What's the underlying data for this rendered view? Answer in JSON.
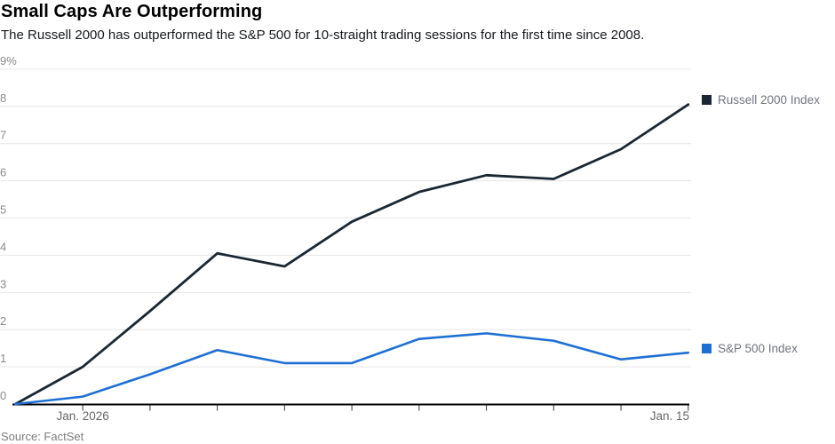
{
  "colors": {
    "grid": "#e6e6e6",
    "axis_line": "#000000",
    "tick": "#333333",
    "y_label": "#8a8a8a",
    "x_label": "#666666",
    "legend_text": "#70757d",
    "title": "#000000",
    "subtitle": "#15181d",
    "source": "#7c7c7c",
    "russell": "#1a2733",
    "sp500": "#1e6fd4"
  },
  "chart_data": {
    "type": "line",
    "title": "Small Caps Are Outperforming",
    "subtitle": "The Russell 2000 has outperformed the S&P 500 for 10-straight trading sessions for the first time since 2008.",
    "source": "Source: FactSet",
    "x": [
      0,
      1,
      2,
      3,
      4,
      5,
      6,
      7,
      8,
      9,
      10
    ],
    "x_axis": {
      "tick_indices": [
        1,
        2,
        3,
        4,
        5,
        6,
        7,
        8,
        9,
        10
      ],
      "labels": [
        {
          "index": 1,
          "label": "Jan. 2026",
          "align": "center"
        },
        {
          "index": 10,
          "label": "Jan. 15",
          "align": "end"
        }
      ]
    },
    "y_axis": {
      "min": 0,
      "max": 9,
      "unit": "%",
      "ticks": [
        {
          "value": 0,
          "label": "0"
        },
        {
          "value": 1,
          "label": "1"
        },
        {
          "value": 2,
          "label": "2"
        },
        {
          "value": 3,
          "label": "3"
        },
        {
          "value": 4,
          "label": "4"
        },
        {
          "value": 5,
          "label": "5"
        },
        {
          "value": 6,
          "label": "6"
        },
        {
          "value": 7,
          "label": "7"
        },
        {
          "value": 8,
          "label": "8"
        },
        {
          "value": 9,
          "label": "9%"
        }
      ]
    },
    "grid": true,
    "legend_position": "right-at-line-ends",
    "series": [
      {
        "name": "Russell 2000 Index",
        "color": "#1a2733",
        "values": [
          0,
          1.0,
          2.5,
          4.05,
          3.7,
          4.9,
          5.7,
          6.15,
          6.05,
          6.85,
          8.05
        ]
      },
      {
        "name": "S&P 500 Index",
        "color": "#1e6fd4",
        "values": [
          0,
          0.2,
          0.8,
          1.45,
          1.1,
          1.1,
          1.75,
          1.9,
          1.7,
          1.2,
          1.38
        ]
      }
    ]
  }
}
